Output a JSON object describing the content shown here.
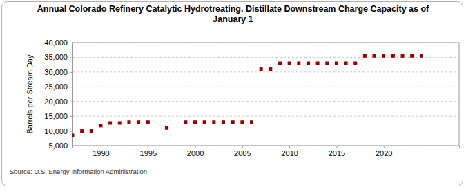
{
  "chart_data": {
    "type": "scatter",
    "title": [
      "Annual Colorado Refinery Catalytic Hydrotreating. Distillate Downstream Charge Capacity as of",
      "January 1"
    ],
    "y_label": "Barrels per Stream Day",
    "source": "Source: U.S. Energy Information Administration",
    "x": [
      1987,
      1988,
      1989,
      1990,
      1991,
      1992,
      1993,
      1994,
      1995,
      1997,
      1999,
      2000,
      2001,
      2002,
      2003,
      2004,
      2005,
      2006,
      2007,
      2008,
      2009,
      2010,
      2011,
      2012,
      2013,
      2014,
      2015,
      2016,
      2017,
      2018,
      2019,
      2020,
      2021,
      2022,
      2023,
      2024
    ],
    "values": [
      8500,
      10000,
      10000,
      11800,
      12700,
      12700,
      13000,
      13000,
      13000,
      11000,
      13000,
      13000,
      13000,
      13000,
      13000,
      13000,
      13000,
      13000,
      31000,
      31000,
      33000,
      33000,
      33000,
      33000,
      33000,
      33000,
      33000,
      33000,
      33000,
      35500,
      35500,
      35500,
      35500,
      35500,
      35500,
      35500
    ],
    "color": "#990000",
    "marker": "square",
    "xlim": [
      1987,
      2028
    ],
    "xticks": [
      1990,
      1995,
      2000,
      2005,
      2010,
      2015,
      2020
    ],
    "ylim": [
      5000,
      40000
    ],
    "yticks": [
      {
        "value": 5000,
        "label": "5,000"
      },
      {
        "value": 10000,
        "label": "10,000"
      },
      {
        "value": 15000,
        "label": "15,000"
      },
      {
        "value": 20000,
        "label": "20,000"
      },
      {
        "value": 25000,
        "label": "25,000"
      },
      {
        "value": 30000,
        "label": "30,000"
      },
      {
        "value": 35000,
        "label": "35,000"
      },
      {
        "value": 40000,
        "label": "40,000"
      }
    ],
    "grid": true
  }
}
